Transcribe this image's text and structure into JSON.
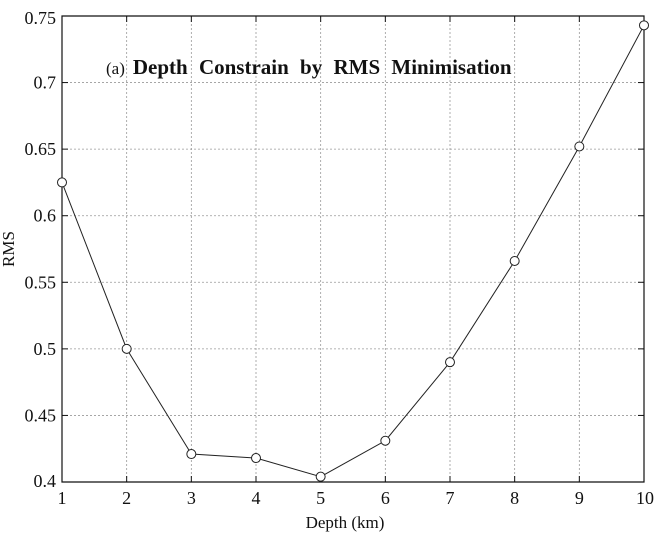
{
  "chart_data": {
    "type": "line",
    "title_prefix": "(a)",
    "title": "Depth Constrain by RMS Minimisation",
    "xlabel": "Depth (km)",
    "ylabel": "RMS",
    "xlim": [
      1,
      10
    ],
    "ylim": [
      0.4,
      0.75
    ],
    "x_ticks": [
      1,
      2,
      3,
      4,
      5,
      6,
      7,
      8,
      9,
      10
    ],
    "y_ticks": [
      0.4,
      0.45,
      0.5,
      0.55,
      0.6,
      0.65,
      0.7,
      0.75
    ],
    "y_tick_labels": [
      "0.4",
      "0.45",
      "0.5",
      "0.55",
      "0.6",
      "0.65",
      "0.7",
      "0.75"
    ],
    "grid": true,
    "marker": "circle",
    "x": [
      1,
      2,
      3,
      4,
      5,
      6,
      7,
      8,
      9,
      10
    ],
    "values": [
      0.625,
      0.5,
      0.421,
      0.418,
      0.404,
      0.431,
      0.49,
      0.566,
      0.652,
      0.743
    ]
  }
}
